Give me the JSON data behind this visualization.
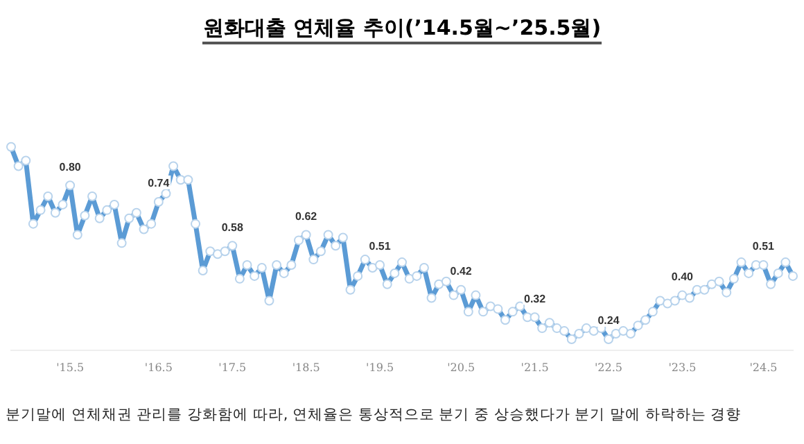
{
  "chart_data": {
    "type": "line",
    "title": "원화대출 연체율 추이(’14.5월~’25.5월)",
    "annotations": [
      "분기말에 연체채권 관리를 강화함에 따라, 연체율은 통상적으로 분기 중 상승했다가 분기 말에 하락하는 경향"
    ],
    "categories": [
      null,
      null,
      null,
      null,
      null,
      null,
      null,
      null,
      "'15.5",
      null,
      null,
      null,
      null,
      null,
      null,
      null,
      null,
      null,
      null,
      null,
      "'16.5",
      null,
      null,
      null,
      null,
      null,
      null,
      null,
      null,
      null,
      "'17.5",
      null,
      null,
      null,
      null,
      null,
      null,
      null,
      null,
      null,
      "'18.5",
      null,
      null,
      null,
      null,
      null,
      null,
      null,
      null,
      null,
      "'19.5",
      null,
      null,
      null,
      null,
      null,
      null,
      null,
      null,
      null,
      null,
      "'20.5",
      null,
      null,
      null,
      null,
      null,
      null,
      null,
      null,
      null,
      "'21.5",
      null,
      null,
      null,
      null,
      null,
      null,
      null,
      null,
      null,
      "'22.5",
      null,
      null,
      null,
      null,
      null,
      null,
      null,
      null,
      null,
      "'23.5",
      null,
      null,
      null,
      null,
      null,
      null,
      null,
      null,
      null,
      null,
      "'24.5",
      null,
      null,
      null,
      null
    ],
    "series": [
      {
        "color": "#5b9bd5",
        "values": [
          0.94,
          0.87,
          0.89,
          0.66,
          0.71,
          0.76,
          0.7,
          0.73,
          0.8,
          0.62,
          0.69,
          0.76,
          0.68,
          0.71,
          0.73,
          0.59,
          0.68,
          0.7,
          0.64,
          0.66,
          0.74,
          0.77,
          0.87,
          0.82,
          0.82,
          0.66,
          0.49,
          0.56,
          0.55,
          0.56,
          0.58,
          0.46,
          0.51,
          0.47,
          0.5,
          0.38,
          0.51,
          0.48,
          0.51,
          0.6,
          0.62,
          0.53,
          0.56,
          0.62,
          0.58,
          0.61,
          0.42,
          0.47,
          0.53,
          0.5,
          0.51,
          0.44,
          0.48,
          0.52,
          0.46,
          0.47,
          0.5,
          0.39,
          0.44,
          0.45,
          0.4,
          0.42,
          0.34,
          0.4,
          0.34,
          0.36,
          0.35,
          0.31,
          0.34,
          0.36,
          0.32,
          0.32,
          0.28,
          0.3,
          0.28,
          0.27,
          0.24,
          0.26,
          0.28,
          0.27,
          0.28,
          0.24,
          0.26,
          0.27,
          0.26,
          0.29,
          0.31,
          0.34,
          0.38,
          0.37,
          0.38,
          0.4,
          0.39,
          0.42,
          0.42,
          0.44,
          0.45,
          0.41,
          0.46,
          0.52,
          0.48,
          0.51,
          0.51,
          0.44,
          0.48,
          0.52,
          0.47
        ],
        "value_labels": [
          null,
          null,
          null,
          null,
          null,
          null,
          null,
          null,
          "0.80",
          null,
          null,
          null,
          null,
          null,
          null,
          null,
          null,
          null,
          null,
          null,
          "0.74",
          null,
          null,
          null,
          null,
          null,
          null,
          null,
          null,
          null,
          "0.58",
          null,
          null,
          null,
          null,
          null,
          null,
          null,
          null,
          null,
          "0.62",
          null,
          null,
          null,
          null,
          null,
          null,
          null,
          null,
          null,
          "0.51",
          null,
          null,
          null,
          null,
          null,
          null,
          null,
          null,
          null,
          null,
          "0.42",
          null,
          null,
          null,
          null,
          null,
          null,
          null,
          null,
          null,
          "0.32",
          null,
          null,
          null,
          null,
          null,
          null,
          null,
          null,
          null,
          "0.24",
          null,
          null,
          null,
          null,
          null,
          null,
          null,
          null,
          null,
          "0.40",
          null,
          null,
          null,
          null,
          null,
          null,
          null,
          null,
          null,
          null,
          "0.51",
          null,
          null,
          null,
          null
        ]
      }
    ],
    "grid": false,
    "legend": false,
    "marker": "circle",
    "line_style": "solid",
    "tick_labels": "x"
  }
}
